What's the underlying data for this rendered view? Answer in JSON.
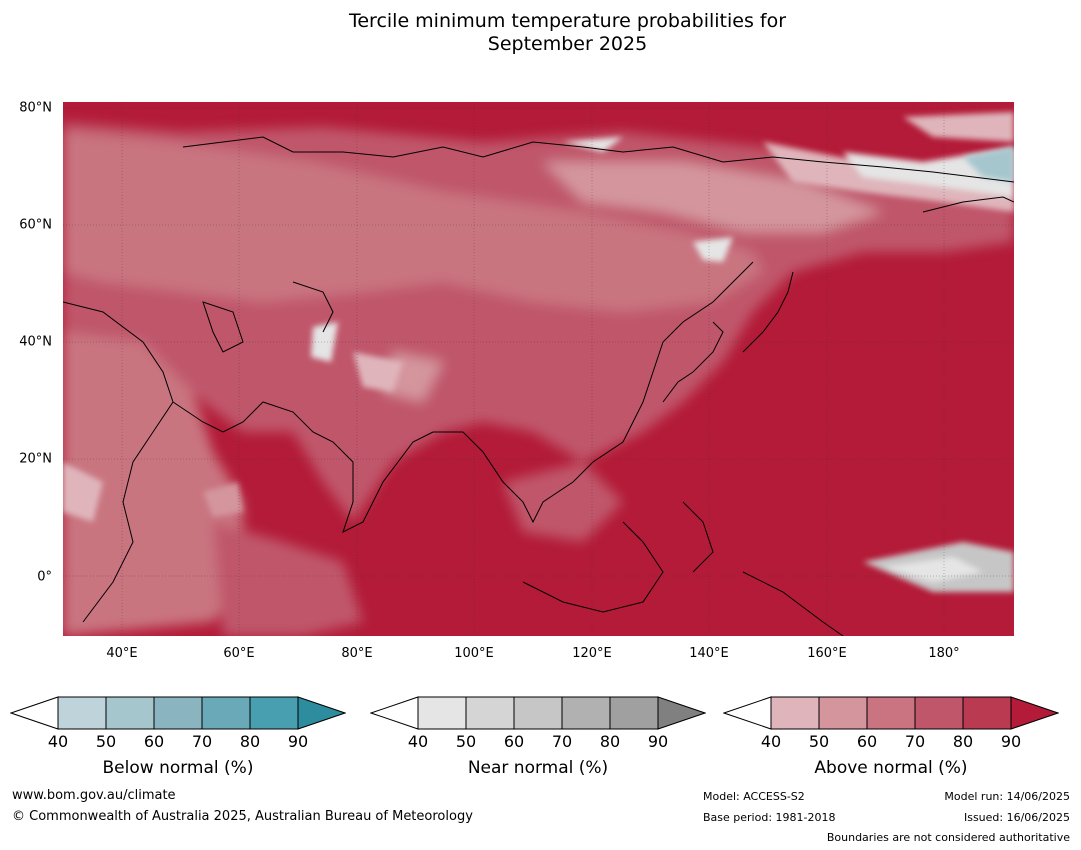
{
  "title_line1": "Tercile minimum temperature probabilities for",
  "title_line2": "September 2025",
  "axes": {
    "lat_labels": [
      "80°N",
      "60°N",
      "40°N",
      "20°N",
      "0°"
    ],
    "lon_labels": [
      "40°E",
      "60°E",
      "80°E",
      "100°E",
      "120°E",
      "140°E",
      "160°E",
      "180°"
    ]
  },
  "legend": {
    "below": {
      "label": "Below normal (%)",
      "ticks": [
        "40",
        "50",
        "60",
        "70",
        "80",
        "90"
      ],
      "colors": [
        "#ffffff",
        "#bfd3da",
        "#a6c6cd",
        "#8bb4c1",
        "#6aaab8",
        "#489fb0",
        "#2e8c9f"
      ]
    },
    "near": {
      "label": "Near normal (%)",
      "ticks": [
        "40",
        "50",
        "60",
        "70",
        "80",
        "90"
      ],
      "colors": [
        "#ffffff",
        "#e5e5e5",
        "#d5d5d5",
        "#c6c6c6",
        "#b1b1b1",
        "#a0a0a0",
        "#808080"
      ]
    },
    "above": {
      "label": "Above normal (%)",
      "ticks": [
        "40",
        "50",
        "60",
        "70",
        "80",
        "90"
      ],
      "colors": [
        "#ffffff",
        "#dfb5bb",
        "#d4959d",
        "#c97480",
        "#c0566a",
        "#b93a51",
        "#b31b38"
      ]
    }
  },
  "footer": {
    "website": "www.bom.gov.au/climate",
    "copyright": "© Commonwealth of Australia 2025, Australian Bureau of Meteorology",
    "model": "Model: ACCESS-S2",
    "base_period": "Base period: 1981-2018",
    "model_run": "Model run: 14/06/2025",
    "issued": "Issued: 16/06/2025",
    "disclaimer": "Boundaries are not considered authoritative"
  },
  "colors": {
    "map_base": "#b31b38",
    "land_mid": "#c0566a",
    "land_light": "#d4959d",
    "land_pale": "#dfb5bb",
    "near_grey": "#c6c6c6",
    "below_teal": "#a6c6cd"
  }
}
